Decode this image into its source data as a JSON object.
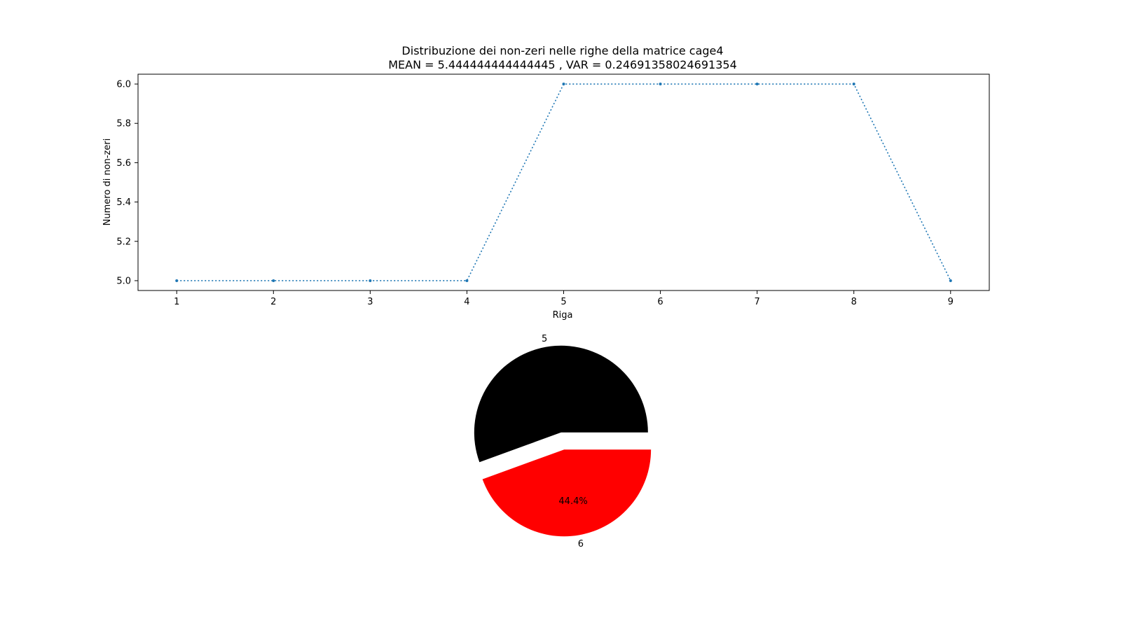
{
  "figure": {
    "title_line1": "Distribuzione dei non-zeri nelle righe della matrice cage4",
    "title_line2": "MEAN = 5.444444444444445 , VAR = 0.24691358024691354"
  },
  "chart_data": [
    {
      "type": "line",
      "title": "Distribuzione dei non-zeri nelle righe della matrice cage4\nMEAN = 5.444444444444445 , VAR = 0.24691358024691354",
      "xlabel": "Riga",
      "ylabel": "Numero di non-zeri",
      "x": [
        1,
        2,
        3,
        4,
        5,
        6,
        7,
        8,
        9
      ],
      "y": [
        5,
        5,
        5,
        5,
        6,
        6,
        6,
        6,
        5
      ],
      "xticks": [
        "1",
        "2",
        "3",
        "4",
        "5",
        "6",
        "7",
        "8",
        "9"
      ],
      "yticks": [
        "5.0",
        "5.2",
        "5.4",
        "5.6",
        "5.8",
        "6.0"
      ],
      "xlim": [
        0.6,
        9.4
      ],
      "ylim": [
        4.95,
        6.05
      ],
      "line_style": "dotted",
      "marker": "point",
      "grid": false,
      "color": "#1f77b4"
    },
    {
      "type": "pie",
      "labels": [
        "5",
        "6"
      ],
      "values": [
        5,
        4
      ],
      "autopct_labels": [
        "",
        "44.4%"
      ],
      "colors": [
        "#000000",
        "#ff0000"
      ],
      "explode": [
        0.1,
        0.1
      ]
    }
  ]
}
